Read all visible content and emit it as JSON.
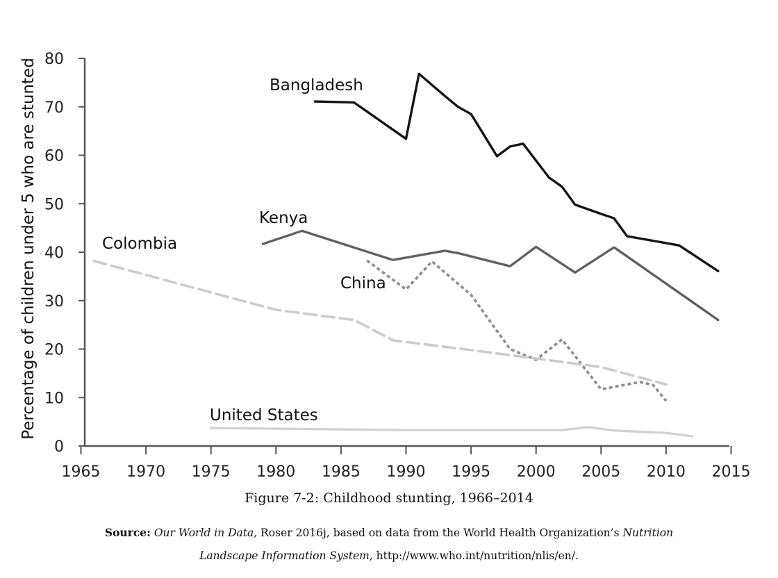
{
  "chart_data": {
    "type": "line",
    "title": "Figure 7-2: Childhood stunting, 1966–2014",
    "xlabel": "",
    "ylabel": "Percentage of children under 5 who are stunted",
    "xlim": [
      1965,
      2015
    ],
    "ylim": [
      0,
      80
    ],
    "xticks": [
      1965,
      1970,
      1975,
      1980,
      1985,
      1990,
      1995,
      2000,
      2005,
      2010,
      2015
    ],
    "yticks": [
      0,
      10,
      20,
      30,
      40,
      50,
      60,
      70,
      80
    ],
    "grid": false,
    "legend": "inline labels",
    "series": [
      {
        "name": "Bangladesh",
        "color": "#151515",
        "style": "solid",
        "points": [
          [
            1983,
            71.1
          ],
          [
            1986,
            70.9
          ],
          [
            1990,
            63.4
          ],
          [
            1991,
            76.8
          ],
          [
            1993,
            72.2
          ],
          [
            1994,
            70.0
          ],
          [
            1995,
            68.5
          ],
          [
            1997,
            59.8
          ],
          [
            1998,
            61.8
          ],
          [
            1999,
            62.4
          ],
          [
            2001,
            55.4
          ],
          [
            2002,
            53.5
          ],
          [
            2003,
            49.8
          ],
          [
            2005,
            47.9
          ],
          [
            2006,
            47.0
          ],
          [
            2007,
            43.3
          ],
          [
            2011,
            41.4
          ],
          [
            2014,
            36.1
          ]
        ]
      },
      {
        "name": "Kenya",
        "color": "#616161",
        "style": "solid",
        "points": [
          [
            1979,
            41.7
          ],
          [
            1982,
            44.4
          ],
          [
            1989,
            38.4
          ],
          [
            1993,
            40.3
          ],
          [
            1994,
            39.8
          ],
          [
            1998,
            37.1
          ],
          [
            2000,
            41.1
          ],
          [
            2003,
            35.8
          ],
          [
            2006,
            41.0
          ],
          [
            2014,
            26.0
          ]
        ]
      },
      {
        "name": "China",
        "color": "#8e8e8e",
        "style": "dotted",
        "points": [
          [
            1987,
            38.3
          ],
          [
            1990,
            32.3
          ],
          [
            1992,
            38.1
          ],
          [
            1995,
            31.2
          ],
          [
            1998,
            20.0
          ],
          [
            2000,
            17.8
          ],
          [
            2002,
            22.0
          ],
          [
            2005,
            11.7
          ],
          [
            2008,
            13.2
          ],
          [
            2009,
            12.6
          ],
          [
            2010,
            9.3
          ]
        ]
      },
      {
        "name": "Colombia",
        "color": "#cccccc",
        "style": "dashed",
        "points": [
          [
            1966,
            38.2
          ],
          [
            1980,
            28.1
          ],
          [
            1986,
            26.0
          ],
          [
            1989,
            21.8
          ],
          [
            1995,
            19.8
          ],
          [
            2005,
            16.3
          ],
          [
            2010,
            12.7
          ]
        ]
      },
      {
        "name": "United States",
        "color": "#d2d2d2",
        "style": "solid",
        "points": [
          [
            1975,
            3.7
          ],
          [
            1990,
            3.3
          ],
          [
            2002,
            3.3
          ],
          [
            2004,
            3.9
          ],
          [
            2006,
            3.2
          ],
          [
            2010,
            2.7
          ],
          [
            2012,
            2.0
          ]
        ]
      }
    ]
  },
  "caption": "Figure 7-2: Childhood stunting, 1966–2014",
  "source": {
    "prefix": "Source:",
    "publication": "Our World in Data,",
    "text_1": " Roser 2016j, based on data from the World Health Organization’s ",
    "system": "Nutrition Landscape Information System",
    "text_2": ", http://www.who.int/nutrition/nlis/en/."
  }
}
